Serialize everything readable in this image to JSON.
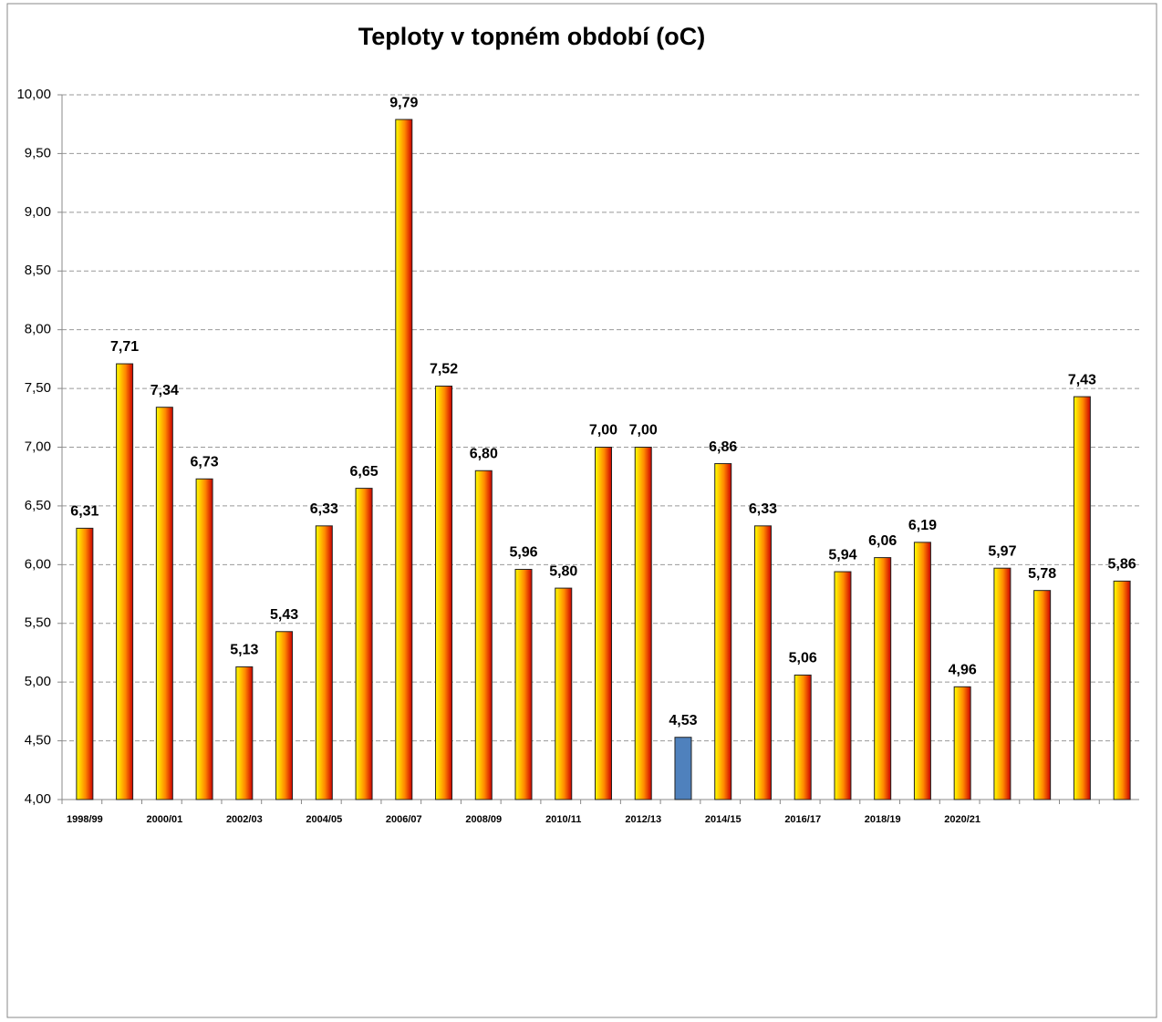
{
  "chart_data": {
    "type": "bar",
    "title": "Teploty v topném období (oC)",
    "categories": [
      "1998/99",
      null,
      "2000/01",
      null,
      "2002/03",
      null,
      "2004/05",
      null,
      "2006/07",
      null,
      "2008/09",
      null,
      "2010/11",
      null,
      "2012/13",
      null,
      "2014/15",
      null,
      "2016/17",
      null,
      "2018/19",
      null,
      "2020/21",
      null,
      null,
      null,
      null
    ],
    "values": [
      6.31,
      7.71,
      7.34,
      6.73,
      5.13,
      5.43,
      6.33,
      6.65,
      9.79,
      7.52,
      6.8,
      5.96,
      5.8,
      7.0,
      7.0,
      4.53,
      6.86,
      6.33,
      5.06,
      5.94,
      6.06,
      6.19,
      4.96,
      5.97,
      5.78,
      7.43,
      5.86
    ],
    "value_labels": [
      "6,31",
      "7,71",
      "7,34",
      "6,73",
      "5,13",
      "5,43",
      "6,33",
      "6,65",
      "9,79",
      "7,52",
      "6,80",
      "5,96",
      "5,80",
      "7,00",
      "7,00",
      "4,53",
      "6,86",
      "6,33",
      "5,06",
      "5,94",
      "6,06",
      "6,19",
      "4,96",
      "5,97",
      "5,78",
      "7,43",
      "5,86"
    ],
    "colors": [
      "#ff0000",
      "#ff0000",
      "#ff0000",
      "#ff0000",
      "#ff0000",
      "#ff0000",
      "#ff0000",
      "#ff0000",
      "#ff0000",
      "#ff0000",
      "#ff0000",
      "#ff0000",
      "#ff0000",
      "#ff0000",
      "#ff0000",
      "#4f81bd",
      "#ff0000",
      "#ff0000",
      "#ff0000",
      "#ff0000",
      "#ff0000",
      "#ff0000",
      "#ff0000",
      "#ff0000",
      "#ff0000",
      "#ff0000",
      "#ff0000"
    ],
    "ylim": [
      4,
      10
    ],
    "yticks": [
      {
        "value": 4,
        "label": "4,00"
      },
      {
        "value": 4.5,
        "label": "4,50"
      },
      {
        "value": 5,
        "label": "5,00"
      },
      {
        "value": 5.5,
        "label": "5,50"
      },
      {
        "value": 6,
        "label": "6,00"
      },
      {
        "value": 6.5,
        "label": "6,50"
      },
      {
        "value": 7,
        "label": "7,00"
      },
      {
        "value": 7.5,
        "label": "7,50"
      },
      {
        "value": 8,
        "label": "8,00"
      },
      {
        "value": 8.5,
        "label": "8,50"
      },
      {
        "value": 9,
        "label": "9,00"
      },
      {
        "value": 9.5,
        "label": "9,50"
      },
      {
        "value": 10,
        "label": "10,00"
      }
    ],
    "grid": true
  }
}
